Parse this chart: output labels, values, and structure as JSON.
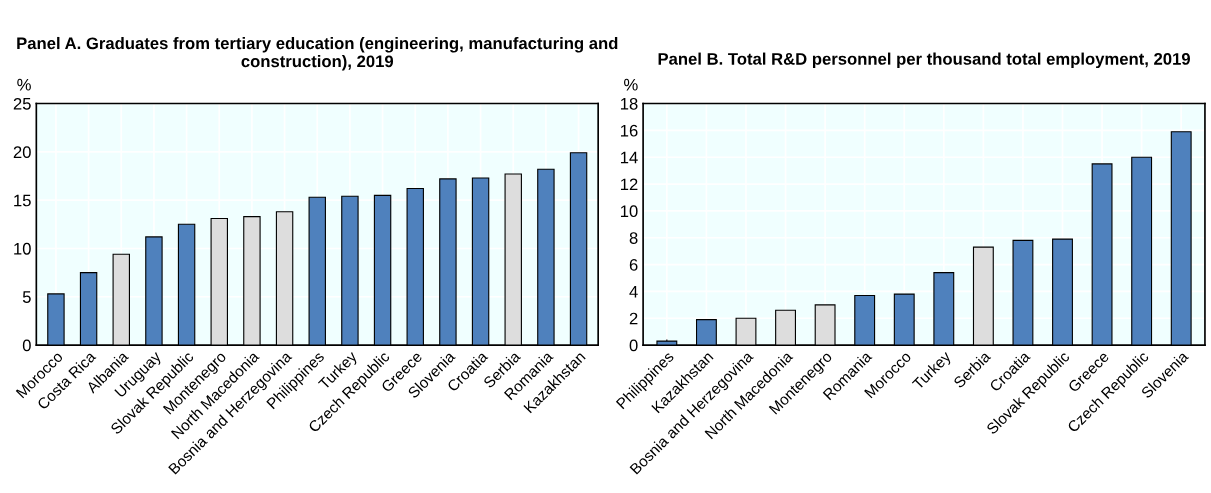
{
  "chart_data": [
    {
      "type": "bar",
      "title": "Panel A. Graduates from tertiary education (engineering, manufacturing and construction), 2019",
      "ylabel": "%",
      "categories": [
        "Morocco",
        "Costa Rica",
        "Albania",
        "Uruguay",
        "Slovak Republic",
        "Montenegro",
        "North Macedonia",
        "Bosnia and Herzegovina",
        "Philippines",
        "Turkey",
        "Czech Republic",
        "Greece",
        "Slovenia",
        "Croatia",
        "Serbia",
        "Romania",
        "Kazakhstan"
      ],
      "values": [
        5.3,
        7.5,
        9.4,
        11.2,
        12.5,
        13.1,
        13.3,
        13.8,
        15.3,
        15.4,
        15.5,
        16.2,
        17.2,
        17.3,
        17.7,
        18.2,
        19.9
      ],
      "colors": [
        "#4f81bd",
        "#4f81bd",
        "#dddddd",
        "#4f81bd",
        "#4f81bd",
        "#dddddd",
        "#dddddd",
        "#dddddd",
        "#4f81bd",
        "#4f81bd",
        "#4f81bd",
        "#4f81bd",
        "#4f81bd",
        "#4f81bd",
        "#dddddd",
        "#4f81bd",
        "#4f81bd"
      ],
      "ylim": [
        0,
        25
      ],
      "yticks": [
        0,
        5,
        10,
        15,
        20,
        25
      ],
      "grid": true
    },
    {
      "type": "bar",
      "title": "Panel B. Total R&D personnel per thousand total employment, 2019",
      "ylabel": "%",
      "categories": [
        "Philippines",
        "Kazakhstan",
        "Bosnia and Herzegovina",
        "North Macedonia",
        "Montenegro",
        "Romania",
        "Morocco",
        "Turkey",
        "Serbia",
        "Croatia",
        "Slovak Republic",
        "Greece",
        "Czech Republic",
        "Slovenia"
      ],
      "values": [
        0.3,
        1.9,
        2.0,
        2.6,
        3.0,
        3.7,
        3.8,
        5.4,
        7.3,
        7.8,
        7.9,
        13.5,
        14.0,
        15.9
      ],
      "colors": [
        "#4f81bd",
        "#4f81bd",
        "#dddddd",
        "#dddddd",
        "#dddddd",
        "#4f81bd",
        "#4f81bd",
        "#4f81bd",
        "#dddddd",
        "#4f81bd",
        "#4f81bd",
        "#4f81bd",
        "#4f81bd",
        "#4f81bd"
      ],
      "ylim": [
        0,
        18
      ],
      "yticks": [
        0,
        2,
        4,
        6,
        8,
        10,
        12,
        14,
        16,
        18
      ],
      "grid": true
    }
  ]
}
